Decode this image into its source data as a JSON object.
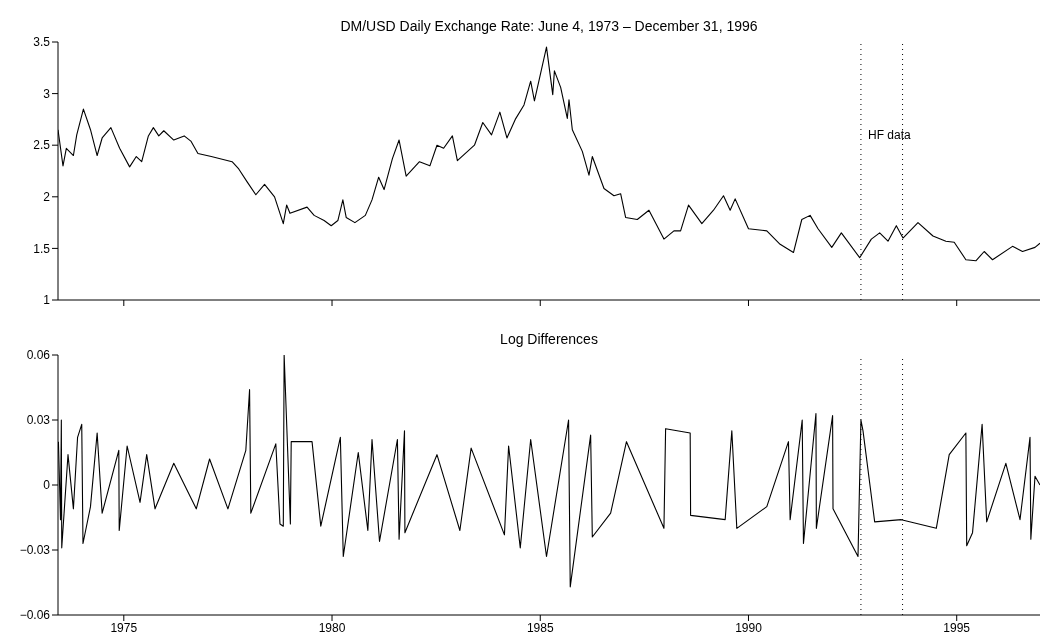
{
  "chart_data": [
    {
      "type": "line",
      "title": "DM/USD Daily Exchange Rate: June 4, 1973 – December 31, 1996",
      "color": "#000000",
      "tick_labels": "y",
      "xlim": [
        1973.42,
        1997.0
      ],
      "xticks": [
        1975,
        1980,
        1985,
        1990,
        1995
      ],
      "ylim": [
        1,
        3.5
      ],
      "yticks": [
        1,
        1.5,
        2,
        2.5,
        3,
        3.5
      ],
      "x": [
        1973.42,
        1973.54,
        1973.62,
        1973.79,
        1973.87,
        1974.03,
        1974.2,
        1974.36,
        1974.48,
        1974.69,
        1974.9,
        1975.14,
        1975.3,
        1975.43,
        1975.59,
        1975.71,
        1975.84,
        1975.96,
        1976.2,
        1976.45,
        1976.61,
        1976.78,
        1977.1,
        1977.6,
        1977.76,
        1977.97,
        1978.17,
        1978.38,
        1978.62,
        1978.83,
        1978.91,
        1978.99,
        1979.4,
        1979.57,
        1979.81,
        1979.98,
        1980.14,
        1980.26,
        1980.34,
        1980.55,
        1980.8,
        1980.96,
        1981.12,
        1981.25,
        1981.45,
        1981.61,
        1981.78,
        1982.1,
        1982.35,
        1982.52,
        1982.68,
        1982.89,
        1983.01,
        1983.42,
        1983.62,
        1983.83,
        1984.03,
        1984.2,
        1984.4,
        1984.61,
        1984.77,
        1984.86,
        1985.15,
        1985.3,
        1985.34,
        1985.49,
        1985.65,
        1985.69,
        1985.77,
        1986.01,
        1986.17,
        1986.25,
        1986.53,
        1986.77,
        1986.93,
        1987.05,
        1987.33,
        1987.61,
        1987.97,
        1988.21,
        1988.37,
        1988.56,
        1988.88,
        1989.16,
        1989.4,
        1989.56,
        1989.68,
        1990.0,
        1990.44,
        1990.76,
        1991.08,
        1991.28,
        1991.48,
        1991.67,
        1992.0,
        1992.23,
        1992.67,
        1992.95,
        1993.15,
        1993.35,
        1993.55,
        1993.71,
        1994.07,
        1994.43,
        1994.74,
        1994.94,
        1995.22,
        1995.46,
        1995.66,
        1995.86,
        1996.34,
        1996.58,
        1996.88,
        1997.0
      ],
      "values": [
        2.65,
        2.3,
        2.47,
        2.4,
        2.6,
        2.85,
        2.65,
        2.4,
        2.57,
        2.67,
        2.47,
        2.29,
        2.39,
        2.34,
        2.59,
        2.67,
        2.59,
        2.64,
        2.55,
        2.59,
        2.54,
        2.42,
        2.39,
        2.34,
        2.27,
        2.14,
        2.02,
        2.12,
        2.0,
        1.74,
        1.92,
        1.84,
        1.9,
        1.82,
        1.77,
        1.72,
        1.77,
        1.97,
        1.8,
        1.75,
        1.82,
        1.97,
        2.19,
        2.07,
        2.37,
        2.55,
        2.2,
        2.34,
        2.3,
        2.5,
        2.47,
        2.59,
        2.35,
        2.5,
        2.72,
        2.6,
        2.82,
        2.57,
        2.75,
        2.89,
        3.12,
        2.93,
        3.45,
        2.99,
        3.22,
        3.06,
        2.76,
        2.94,
        2.65,
        2.44,
        2.21,
        2.39,
        2.08,
        2.01,
        2.03,
        1.8,
        1.78,
        1.87,
        1.59,
        1.67,
        1.67,
        1.92,
        1.74,
        1.87,
        2.01,
        1.87,
        1.98,
        1.69,
        1.67,
        1.54,
        1.46,
        1.78,
        1.82,
        1.69,
        1.51,
        1.65,
        1.41,
        1.59,
        1.65,
        1.57,
        1.72,
        1.6,
        1.75,
        1.62,
        1.57,
        1.56,
        1.39,
        1.38,
        1.47,
        1.39,
        1.52,
        1.47,
        1.51,
        1.55
      ],
      "ref_lines": [
        {
          "axis": "x",
          "value": 1992.7,
          "line_style": "dotted"
        },
        {
          "axis": "x",
          "value": 1993.7,
          "line_style": "dotted"
        }
      ],
      "annotations": [
        {
          "text": "HF data",
          "x": 1992.75,
          "y": 2.6
        }
      ]
    },
    {
      "type": "line",
      "title": "Log Differences",
      "color": "#000000",
      "xlim": [
        1973.42,
        1997.0
      ],
      "xticks": [
        1975,
        1980,
        1985,
        1990,
        1995
      ],
      "ylim": [
        -0.06,
        0.06
      ],
      "yticks": [
        {
          "value": -0.06,
          "label": "−0.06"
        },
        {
          "value": -0.03,
          "label": "−0.03"
        },
        0,
        0.03,
        0.06
      ],
      "x": [
        1973.43,
        1973.48,
        1973.5,
        1973.51,
        1973.66,
        1973.79,
        1973.89,
        1973.99,
        1974.02,
        1974.2,
        1974.36,
        1974.48,
        1974.88,
        1974.89,
        1975.08,
        1975.39,
        1975.55,
        1975.75,
        1976.2,
        1976.74,
        1977.06,
        1977.5,
        1977.93,
        1978.02,
        1978.05,
        1978.65,
        1978.75,
        1978.83,
        1978.85,
        1979.0,
        1979.02,
        1979.52,
        1979.73,
        1980.2,
        1980.27,
        1980.63,
        1980.86,
        1980.96,
        1981.14,
        1981.57,
        1981.61,
        1981.74,
        1981.75,
        1982.52,
        1983.07,
        1983.34,
        1984.14,
        1984.24,
        1984.52,
        1984.77,
        1985.15,
        1985.68,
        1985.72,
        1986.21,
        1986.25,
        1986.69,
        1987.07,
        1987.97,
        1988.01,
        1988.6,
        1988.61,
        1989.44,
        1989.6,
        1989.72,
        1990.44,
        1990.96,
        1991.0,
        1991.29,
        1991.32,
        1991.62,
        1991.63,
        1992.02,
        1992.03,
        1992.63,
        1992.7,
        1992.75,
        1993.03,
        1993.67,
        1994.51,
        1994.82,
        1995.22,
        1995.24,
        1995.38,
        1995.61,
        1995.72,
        1996.18,
        1996.52,
        1996.76,
        1996.78,
        1996.88,
        1997.0
      ],
      "values": [
        0.02,
        -0.016,
        0.03,
        -0.029,
        0.014,
        -0.011,
        0.022,
        0.028,
        -0.027,
        -0.01,
        0.024,
        -0.013,
        0.016,
        -0.021,
        0.018,
        -0.008,
        0.014,
        -0.011,
        0.01,
        -0.011,
        0.012,
        -0.011,
        0.016,
        0.044,
        -0.013,
        0.019,
        -0.018,
        -0.019,
        0.06,
        -0.018,
        0.02,
        0.02,
        -0.019,
        0.022,
        -0.033,
        0.015,
        -0.021,
        0.021,
        -0.026,
        0.021,
        -0.025,
        0.025,
        -0.022,
        0.014,
        -0.021,
        0.017,
        -0.023,
        0.018,
        -0.029,
        0.021,
        -0.033,
        0.03,
        -0.047,
        0.023,
        -0.024,
        -0.013,
        0.02,
        -0.02,
        0.026,
        0.024,
        -0.014,
        -0.016,
        0.025,
        -0.02,
        -0.01,
        0.02,
        -0.016,
        0.03,
        -0.027,
        0.033,
        -0.02,
        0.032,
        -0.011,
        -0.033,
        0.03,
        0.025,
        -0.017,
        -0.016,
        -0.02,
        0.014,
        0.024,
        -0.028,
        -0.022,
        0.028,
        -0.017,
        0.01,
        -0.016,
        0.022,
        -0.025,
        0.004,
        0
      ],
      "ref_lines": [
        {
          "axis": "x",
          "value": 1992.7,
          "line_style": "dotted"
        },
        {
          "axis": "x",
          "value": 1993.7,
          "line_style": "dotted"
        }
      ]
    }
  ]
}
